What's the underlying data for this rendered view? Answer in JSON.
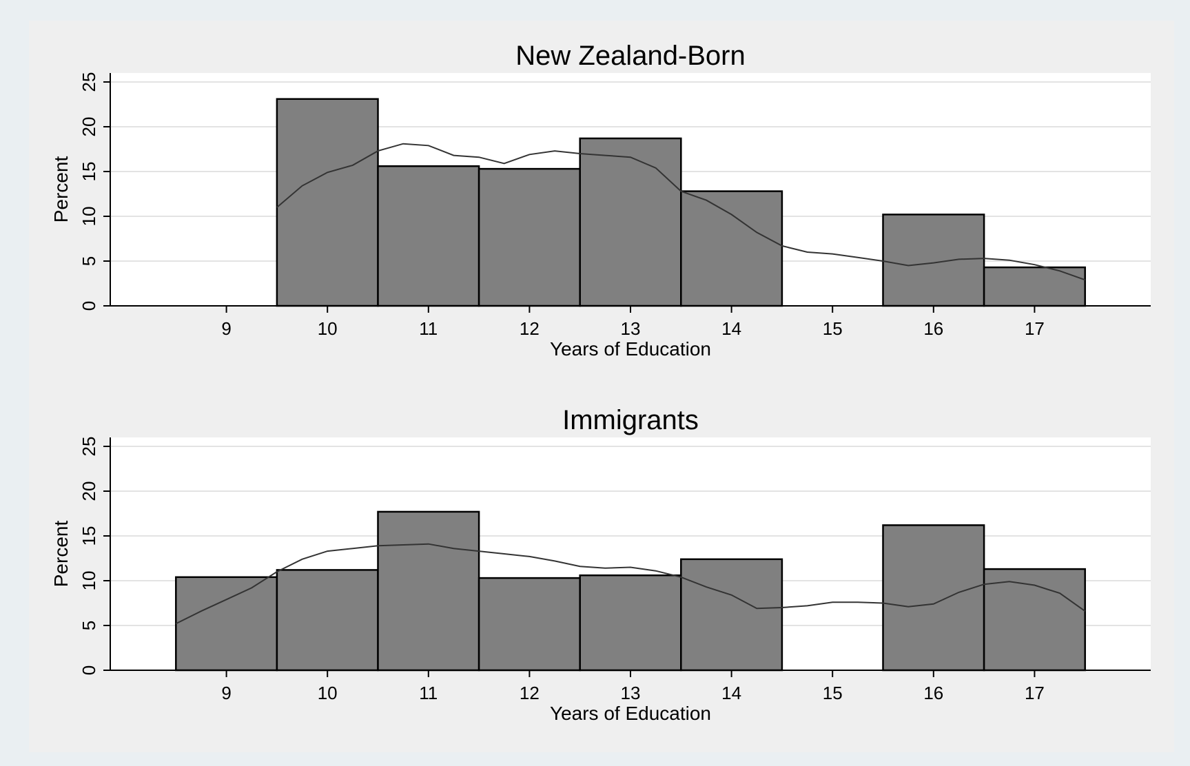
{
  "chart_data": [
    {
      "type": "bar",
      "title": "New Zealand-Born",
      "xlabel": "Years of Education",
      "ylabel": "Percent",
      "categories": [
        10,
        11,
        12,
        13,
        14,
        16,
        17
      ],
      "values": [
        23.1,
        15.6,
        15.3,
        18.7,
        12.8,
        10.2,
        4.3
      ],
      "xticks": [
        "9",
        "10",
        "11",
        "12",
        "13",
        "14",
        "15",
        "16",
        "17"
      ],
      "yticks": [
        "0",
        "5",
        "10",
        "15",
        "20",
        "25"
      ],
      "ylim": [
        0,
        26
      ],
      "xlim": [
        7.85,
        18.15
      ],
      "grid": true,
      "density_line": {
        "x": [
          9.5,
          9.75,
          10.0,
          10.25,
          10.5,
          10.75,
          11.0,
          11.25,
          11.5,
          11.75,
          12.0,
          12.25,
          12.5,
          12.75,
          13.0,
          13.25,
          13.5,
          13.75,
          14.0,
          14.25,
          14.5,
          14.75,
          15.0,
          15.25,
          15.5,
          15.75,
          16.0,
          16.25,
          16.5,
          16.75,
          17.0,
          17.25,
          17.5
        ],
        "y": [
          11.0,
          13.4,
          14.9,
          15.7,
          17.3,
          18.1,
          17.9,
          16.8,
          16.6,
          15.9,
          16.9,
          17.3,
          17.0,
          16.8,
          16.6,
          15.4,
          12.8,
          11.8,
          10.2,
          8.2,
          6.7,
          6.0,
          5.8,
          5.4,
          5.0,
          4.5,
          4.8,
          5.2,
          5.3,
          5.1,
          4.6,
          3.9,
          2.9
        ]
      }
    },
    {
      "type": "bar",
      "title": "Immigrants",
      "xlabel": "Years of Education",
      "ylabel": "Percent",
      "categories": [
        9,
        10,
        11,
        12,
        13,
        14,
        16,
        17
      ],
      "values": [
        10.4,
        11.2,
        17.7,
        10.3,
        10.6,
        12.4,
        16.2,
        11.3
      ],
      "xticks": [
        "9",
        "10",
        "11",
        "12",
        "13",
        "14",
        "15",
        "16",
        "17"
      ],
      "yticks": [
        "0",
        "5",
        "10",
        "15",
        "20",
        "25"
      ],
      "ylim": [
        0,
        26
      ],
      "xlim": [
        7.85,
        18.15
      ],
      "grid": true,
      "density_line": {
        "x": [
          8.5,
          8.75,
          9.0,
          9.25,
          9.5,
          9.75,
          10.0,
          10.25,
          10.5,
          10.75,
          11.0,
          11.25,
          11.5,
          11.75,
          12.0,
          12.25,
          12.5,
          12.75,
          13.0,
          13.25,
          13.5,
          13.75,
          14.0,
          14.25,
          14.5,
          14.75,
          15.0,
          15.25,
          15.5,
          15.75,
          16.0,
          16.25,
          16.5,
          16.75,
          17.0,
          17.25,
          17.5
        ],
        "y": [
          5.2,
          6.6,
          7.9,
          9.2,
          11.0,
          12.4,
          13.3,
          13.6,
          13.9,
          14.0,
          14.1,
          13.6,
          13.3,
          13.0,
          12.7,
          12.2,
          11.6,
          11.4,
          11.5,
          11.1,
          10.4,
          9.3,
          8.4,
          6.9,
          7.0,
          7.2,
          7.6,
          7.6,
          7.5,
          7.1,
          7.4,
          8.7,
          9.6,
          9.9,
          9.5,
          8.6,
          6.6
        ]
      }
    }
  ],
  "colors": {
    "bar_fill": "#808080",
    "bar_stroke": "#000000",
    "line": "#333333",
    "grid": "#e3e3e3",
    "plot_bg": "#ffffff",
    "panel_bg": "#efefef",
    "outer_bg": "#eaeff2"
  }
}
